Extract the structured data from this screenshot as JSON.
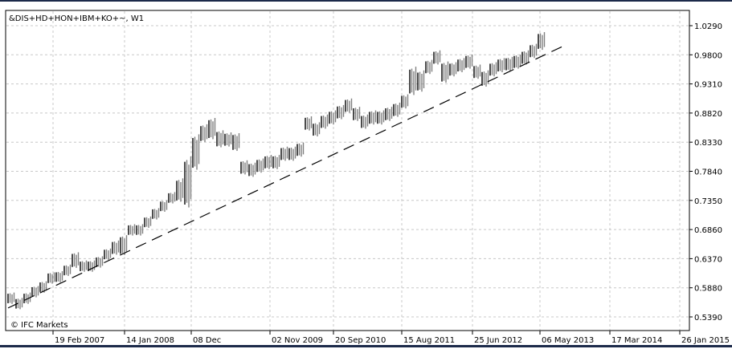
{
  "chart_data": {
    "type": "bar",
    "title": "&DIS+HD+HON+IBM+KO+~, W1",
    "watermark": "© IFC Markets",
    "y_ticks": [
      "1.0290",
      "0.9800",
      "0.9310",
      "0.8820",
      "0.8330",
      "0.7840",
      "0.7350",
      "0.6860",
      "0.6370",
      "0.5880",
      "0.5390"
    ],
    "ylim": [
      0.539,
      1.029
    ],
    "x_ticks": [
      "19 Feb 2007",
      "14 Jan 2008",
      "08 Dec",
      "02 Nov 2009",
      "20 Sep 2010",
      "15 Aug 2011",
      "25 Jun 2012",
      "06 May 2013",
      "17 Mar 2014",
      "26 Jan 2015"
    ],
    "grid": true,
    "bar_color": "#808080",
    "bars_low_high": [
      [
        0.562,
        0.578
      ],
      [
        0.553,
        0.569
      ],
      [
        0.562,
        0.578
      ],
      [
        0.573,
        0.589
      ],
      [
        0.581,
        0.597
      ],
      [
        0.596,
        0.612
      ],
      [
        0.598,
        0.614
      ],
      [
        0.609,
        0.625
      ],
      [
        0.623,
        0.645
      ],
      [
        0.616,
        0.632
      ],
      [
        0.616,
        0.632
      ],
      [
        0.623,
        0.639
      ],
      [
        0.636,
        0.652
      ],
      [
        0.645,
        0.665
      ],
      [
        0.645,
        0.673
      ],
      [
        0.677,
        0.693
      ],
      [
        0.677,
        0.693
      ],
      [
        0.69,
        0.706
      ],
      [
        0.704,
        0.72
      ],
      [
        0.717,
        0.733
      ],
      [
        0.731,
        0.747
      ],
      [
        0.735,
        0.768
      ],
      [
        0.728,
        0.8
      ],
      [
        0.79,
        0.84
      ],
      [
        0.835,
        0.86
      ],
      [
        0.84,
        0.87
      ],
      [
        0.826,
        0.85
      ],
      [
        0.827,
        0.847
      ],
      [
        0.82,
        0.845
      ],
      [
        0.78,
        0.8
      ],
      [
        0.776,
        0.796
      ],
      [
        0.783,
        0.803
      ],
      [
        0.789,
        0.809
      ],
      [
        0.789,
        0.809
      ],
      [
        0.803,
        0.823
      ],
      [
        0.803,
        0.823
      ],
      [
        0.81,
        0.83
      ],
      [
        0.854,
        0.874
      ],
      [
        0.844,
        0.864
      ],
      [
        0.857,
        0.877
      ],
      [
        0.864,
        0.884
      ],
      [
        0.873,
        0.893
      ],
      [
        0.884,
        0.904
      ],
      [
        0.87,
        0.89
      ],
      [
        0.857,
        0.877
      ],
      [
        0.864,
        0.884
      ],
      [
        0.864,
        0.884
      ],
      [
        0.87,
        0.89
      ],
      [
        0.877,
        0.897
      ],
      [
        0.891,
        0.911
      ],
      [
        0.915,
        0.955
      ],
      [
        0.92,
        0.95
      ],
      [
        0.949,
        0.969
      ],
      [
        0.965,
        0.985
      ],
      [
        0.935,
        0.965
      ],
      [
        0.945,
        0.965
      ],
      [
        0.952,
        0.972
      ],
      [
        0.958,
        0.978
      ],
      [
        0.941,
        0.961
      ],
      [
        0.928,
        0.951
      ],
      [
        0.945,
        0.965
      ],
      [
        0.952,
        0.972
      ],
      [
        0.954,
        0.974
      ],
      [
        0.958,
        0.978
      ],
      [
        0.965,
        0.985
      ],
      [
        0.976,
        0.996
      ],
      [
        0.99,
        1.015
      ]
    ],
    "trendline": {
      "start": 0.554,
      "end": 0.994,
      "style": "dashed"
    }
  }
}
